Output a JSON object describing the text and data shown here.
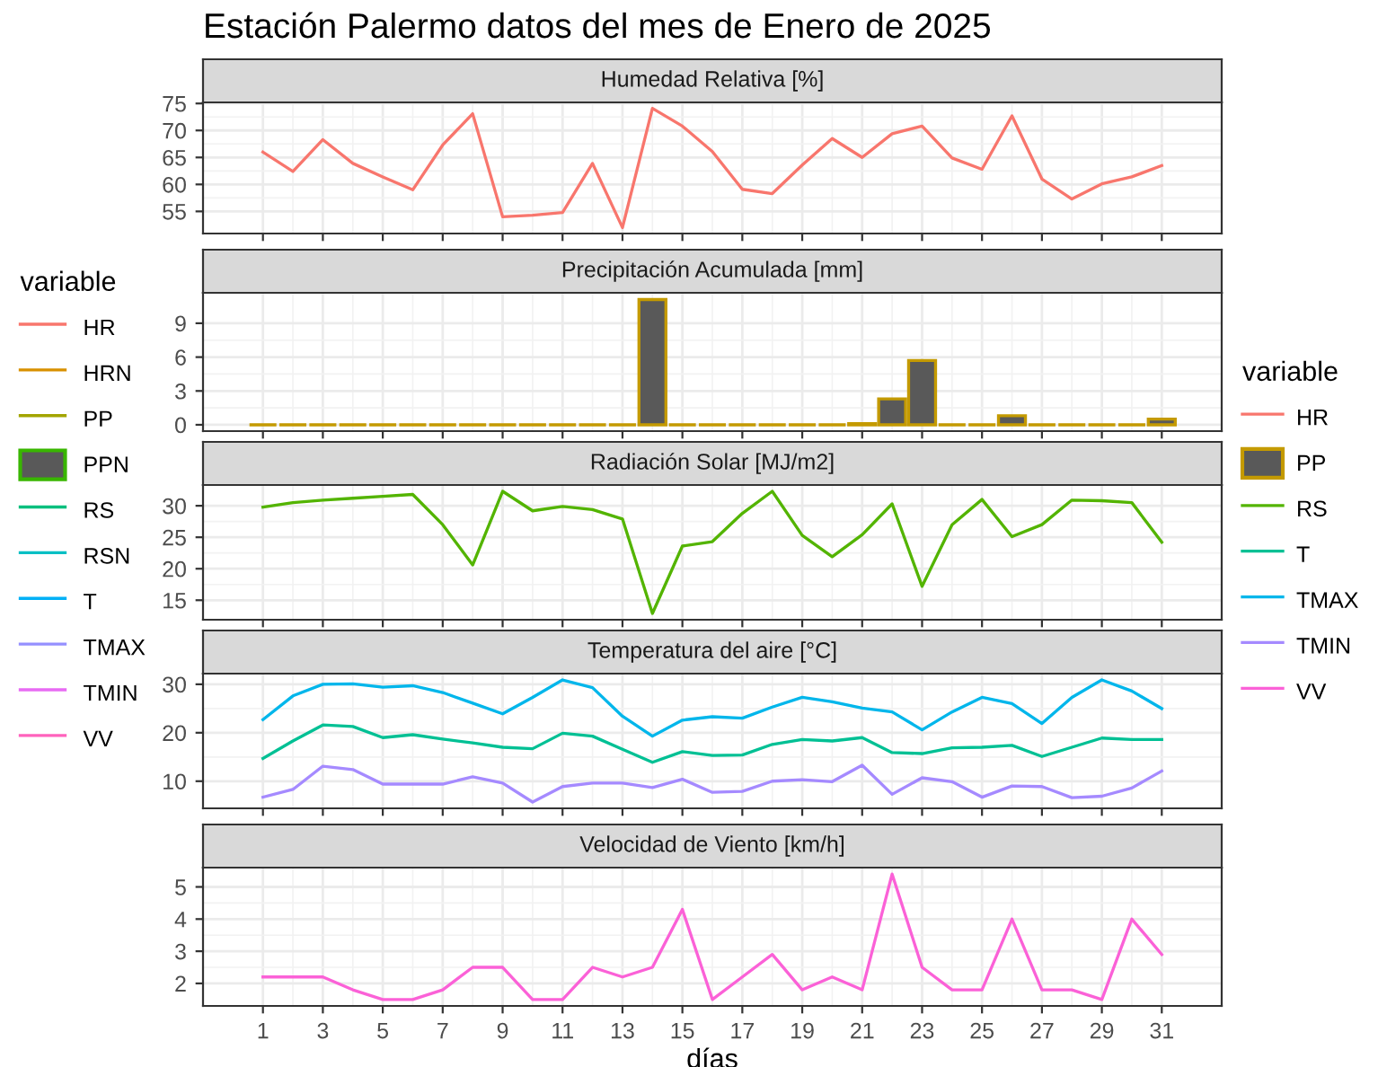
{
  "chart_data": [
    {
      "type": "line",
      "title": "Humedad Relativa [%]",
      "x": [
        1,
        2,
        3,
        4,
        5,
        6,
        7,
        8,
        9,
        10,
        11,
        12,
        13,
        14,
        15,
        16,
        17,
        18,
        19,
        20,
        21,
        22,
        23,
        24,
        25,
        26,
        27,
        28,
        29,
        30,
        31
      ],
      "xlim": [
        -1,
        33
      ],
      "xticks": [
        1,
        3,
        5,
        7,
        9,
        11,
        13,
        15,
        17,
        19,
        21,
        23,
        25,
        27,
        29,
        31
      ],
      "ylim": [
        50.9,
        75.2
      ],
      "yticks": [
        55,
        60,
        65,
        70,
        75
      ],
      "grid": true,
      "tick_labels": "y",
      "legend": "right",
      "legend_title": "variable",
      "annotations": [
        "Estación Palermo datos del mes de Enero de 2025"
      ],
      "series": [
        {
          "name": "HR",
          "color": "#f8766d",
          "values": [
            66,
            62.4,
            68.3,
            63.9,
            61.4,
            59,
            67.3,
            73.1,
            54,
            54.3,
            54.8,
            63.9,
            52,
            74.1,
            70.8,
            66.1,
            59.1,
            58.3,
            63.6,
            68.5,
            65,
            69.4,
            70.8,
            64.9,
            62.8,
            72.7,
            61,
            57.3,
            60.1,
            61.4,
            63.5
          ]
        }
      ]
    },
    {
      "type": "bar",
      "title": "Precipitación Acumulada [mm]",
      "x": [
        1,
        2,
        3,
        4,
        5,
        6,
        7,
        8,
        9,
        10,
        11,
        12,
        13,
        14,
        15,
        16,
        17,
        18,
        19,
        20,
        21,
        22,
        23,
        24,
        25,
        26,
        27,
        28,
        29,
        30,
        31
      ],
      "xlim": [
        -1,
        33
      ],
      "xticks": [
        1,
        3,
        5,
        7,
        9,
        11,
        13,
        15,
        17,
        19,
        21,
        23,
        25,
        27,
        29,
        31
      ],
      "ylim": [
        -0.56,
        11.7
      ],
      "yticks": [
        0,
        3,
        6,
        9
      ],
      "grid": true,
      "tick_labels": "y",
      "legend": "right",
      "series": [
        {
          "name": "PP",
          "color": "#c49a00",
          "values": [
            0,
            0,
            0,
            0,
            0,
            0,
            0,
            0,
            0,
            0,
            0,
            0,
            0,
            11.1,
            0,
            0,
            0,
            0,
            0,
            0,
            0.1,
            2.3,
            5.7,
            0,
            0,
            0.8,
            0,
            0,
            0,
            0,
            0.5
          ]
        }
      ]
    },
    {
      "type": "line",
      "title": "Radiación Solar [MJ/m2]",
      "x": [
        1,
        2,
        3,
        4,
        5,
        6,
        7,
        8,
        9,
        10,
        11,
        12,
        13,
        14,
        15,
        16,
        17,
        18,
        19,
        20,
        21,
        22,
        23,
        24,
        25,
        26,
        27,
        28,
        29,
        30,
        31
      ],
      "xlim": [
        -1,
        33
      ],
      "xticks": [
        1,
        3,
        5,
        7,
        9,
        11,
        13,
        15,
        17,
        19,
        21,
        23,
        25,
        27,
        29,
        31
      ],
      "ylim": [
        11.9,
        33.3
      ],
      "yticks": [
        15,
        20,
        25,
        30
      ],
      "grid": true,
      "tick_labels": "y",
      "legend": "right",
      "series": [
        {
          "name": "RS",
          "color": "#53b400",
          "values": [
            29.8,
            30.5,
            30.9,
            31.2,
            31.5,
            31.8,
            27,
            20.6,
            32.3,
            29.2,
            29.9,
            29.4,
            27.9,
            12.9,
            23.6,
            24.3,
            28.8,
            32.3,
            25.3,
            21.9,
            25.4,
            30.3,
            17.2,
            27,
            31,
            25.1,
            27,
            30.9,
            30.8,
            30.5,
            24.2
          ]
        }
      ]
    },
    {
      "type": "line",
      "title": "Temperatura del aire [°C]",
      "x": [
        1,
        2,
        3,
        4,
        5,
        6,
        7,
        8,
        9,
        10,
        11,
        12,
        13,
        14,
        15,
        16,
        17,
        18,
        19,
        20,
        21,
        22,
        23,
        24,
        25,
        26,
        27,
        28,
        29,
        30,
        31
      ],
      "xlim": [
        -1,
        33
      ],
      "xticks": [
        1,
        3,
        5,
        7,
        9,
        11,
        13,
        15,
        17,
        19,
        21,
        23,
        25,
        27,
        29,
        31
      ],
      "ylim": [
        4.4,
        32.2
      ],
      "yticks": [
        10,
        20,
        30
      ],
      "grid": true,
      "tick_labels": "y",
      "legend": "right",
      "series": [
        {
          "name": "T",
          "color": "#00c094",
          "values": [
            14.7,
            18.3,
            21.6,
            21.3,
            19,
            19.6,
            18.7,
            17.9,
            17,
            16.7,
            19.9,
            19.3,
            16.6,
            13.9,
            16.1,
            15.3,
            15.4,
            17.6,
            18.6,
            18.3,
            19,
            15.9,
            15.7,
            16.9,
            17,
            17.4,
            15.1,
            17,
            18.9,
            18.6,
            18.6
          ]
        },
        {
          "name": "TMAX",
          "color": "#00b6eb",
          "values": [
            22.7,
            27.6,
            30,
            30.1,
            29.4,
            29.7,
            28.3,
            26.1,
            23.9,
            27.3,
            30.9,
            29.3,
            23.4,
            19.3,
            22.6,
            23.3,
            23,
            25.3,
            27.3,
            26.4,
            25.1,
            24.3,
            20.6,
            24.3,
            27.3,
            26,
            21.9,
            27.3,
            30.9,
            28.6,
            25
          ]
        },
        {
          "name": "TMIN",
          "color": "#a58aff",
          "values": [
            6.7,
            8.3,
            13.1,
            12.4,
            9.4,
            9.4,
            9.4,
            10.9,
            9.6,
            5.7,
            8.9,
            9.6,
            9.6,
            8.7,
            10.4,
            7.7,
            7.9,
            10,
            10.3,
            9.9,
            13.3,
            7.3,
            10.7,
            9.9,
            6.7,
            9,
            8.9,
            6.6,
            6.9,
            8.6,
            12.1
          ]
        }
      ]
    },
    {
      "type": "line",
      "title": "Velocidad de Viento [km/h]",
      "xlabel": "días",
      "x": [
        1,
        2,
        3,
        4,
        5,
        6,
        7,
        8,
        9,
        10,
        11,
        12,
        13,
        14,
        15,
        16,
        17,
        18,
        19,
        20,
        21,
        22,
        23,
        24,
        25,
        26,
        27,
        28,
        29,
        30,
        31
      ],
      "xlim": [
        -1,
        33
      ],
      "xticks": [
        1,
        3,
        5,
        7,
        9,
        11,
        13,
        15,
        17,
        19,
        21,
        23,
        25,
        27,
        29,
        31
      ],
      "ylim": [
        1.3,
        5.6
      ],
      "yticks": [
        2,
        3,
        4,
        5
      ],
      "grid": true,
      "legend": "right",
      "series": [
        {
          "name": "VV",
          "color": "#fb61d7",
          "values": [
            2.2,
            2.2,
            2.2,
            1.8,
            1.5,
            1.5,
            1.8,
            2.5,
            2.5,
            1.5,
            1.5,
            2.5,
            2.2,
            2.5,
            4.3,
            1.5,
            2.2,
            2.9,
            1.8,
            2.2,
            1.8,
            5.4,
            2.5,
            1.8,
            1.8,
            4,
            1.8,
            1.8,
            1.5,
            4,
            2.9
          ]
        }
      ]
    },
    {
      "type": "other",
      "legend": "left",
      "legend_title": "variable",
      "series": [
        {
          "name": "HR",
          "color": "#f8766d",
          "type": "line"
        },
        {
          "name": "HRN",
          "color": "#d89000",
          "type": "line"
        },
        {
          "name": "PP",
          "color": "#a3a500",
          "type": "line"
        },
        {
          "name": "PPN",
          "color": "#39b600",
          "type": "bar"
        },
        {
          "name": "RS",
          "color": "#00bf7d",
          "type": "line"
        },
        {
          "name": "RSN",
          "color": "#00bfc4",
          "type": "line"
        },
        {
          "name": "T",
          "color": "#00b0f6",
          "type": "line"
        },
        {
          "name": "TMAX",
          "color": "#9590ff",
          "type": "line"
        },
        {
          "name": "TMIN",
          "color": "#e76bf3",
          "type": "line"
        },
        {
          "name": "VV",
          "color": "#ff62bc",
          "type": "line"
        }
      ]
    }
  ]
}
